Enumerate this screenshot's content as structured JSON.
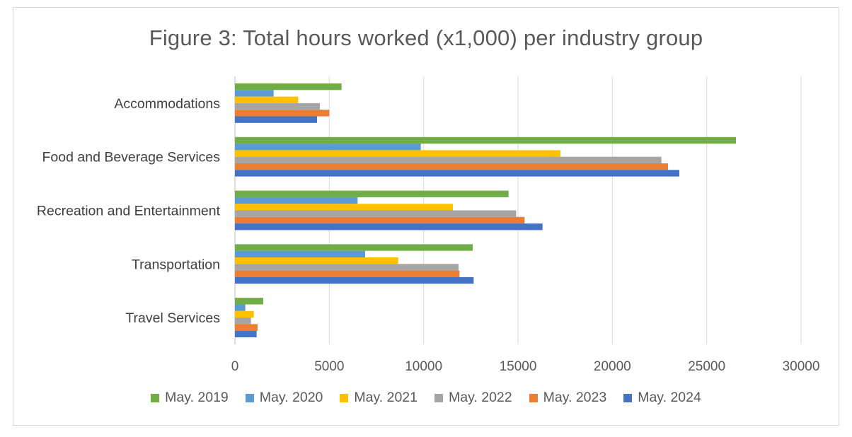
{
  "chart_data": {
    "type": "bar",
    "orientation": "horizontal",
    "title": "Figure 3: Total hours worked (x1,000) per industry group",
    "categories": [
      "Accommodations",
      "Food and Beverage Services",
      "Recreation and Entertainment",
      "Transportation",
      "Travel Services"
    ],
    "series": [
      {
        "name": "May. 2019",
        "color": "#70ad47",
        "values": [
          5650,
          26550,
          14500,
          12600,
          1500
        ]
      },
      {
        "name": "May. 2020",
        "color": "#5b9bd5",
        "values": [
          2050,
          9850,
          6500,
          6900,
          550
        ]
      },
      {
        "name": "May. 2021",
        "color": "#ffc000",
        "values": [
          3350,
          17250,
          11550,
          8650,
          1000
        ]
      },
      {
        "name": "May. 2022",
        "color": "#a5a5a5",
        "values": [
          4500,
          22600,
          14900,
          11850,
          850
        ]
      },
      {
        "name": "May. 2023",
        "color": "#ed7d31",
        "values": [
          5000,
          22950,
          15350,
          11900,
          1200
        ]
      },
      {
        "name": "May. 2024",
        "color": "#4472c4",
        "values": [
          4350,
          23550,
          16300,
          12650,
          1150
        ]
      }
    ],
    "xlim": [
      0,
      30000
    ],
    "xticks": [
      "0",
      "5000",
      "10000",
      "15000",
      "20000",
      "25000",
      "30000"
    ],
    "grid": true,
    "legend_position": "bottom"
  }
}
